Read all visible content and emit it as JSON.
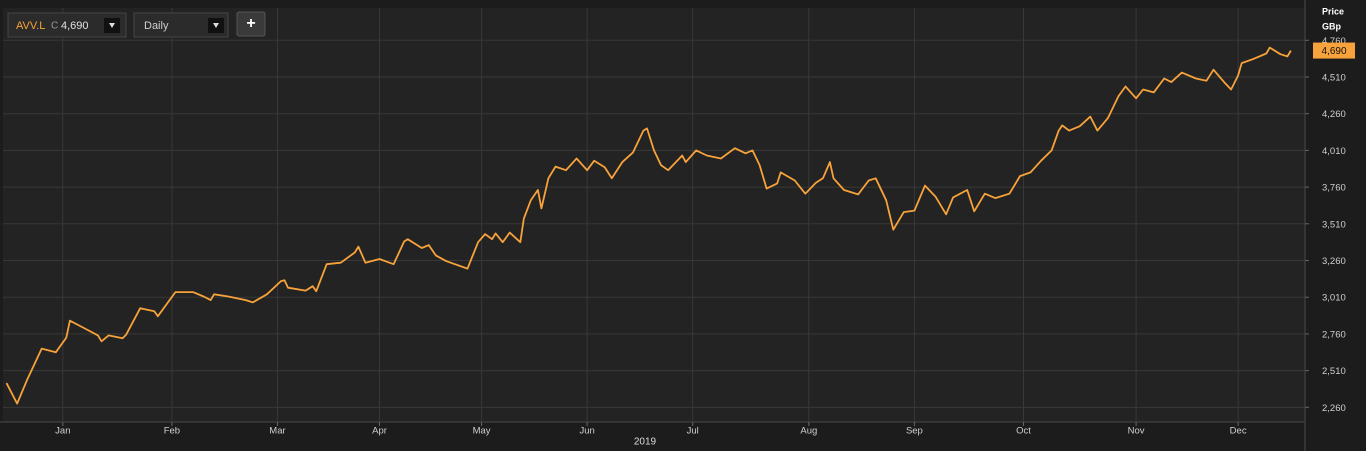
{
  "chart_data": {
    "type": "line",
    "interval": "Daily",
    "close_prefix": "C",
    "last_label": "4,690",
    "add_button": "+",
    "axis_title": [
      "Price",
      "GBp"
    ],
    "year_label": "2019",
    "grid": true,
    "x": [
      1,
      4,
      7,
      11,
      15,
      18,
      19,
      23,
      27,
      28,
      30,
      34,
      35,
      39,
      43,
      44,
      49,
      54,
      57,
      59,
      60,
      64,
      69,
      71,
      75,
      79,
      80,
      81,
      86,
      88,
      89,
      92,
      96,
      100,
      101,
      103,
      107,
      111,
      114,
      115,
      119,
      121,
      123,
      126,
      132,
      135,
      137,
      139,
      140,
      142,
      144,
      147,
      148,
      150,
      152,
      153,
      155,
      157,
      160,
      163,
      166,
      168,
      171,
      173,
      176,
      179,
      182,
      183,
      185,
      187,
      189,
      193,
      194,
      197,
      200,
      204,
      208,
      211,
      213,
      215,
      217,
      220,
      221,
      225,
      228,
      231,
      233,
      235,
      236,
      239,
      243,
      246,
      248,
      251,
      253,
      256,
      259,
      262,
      265,
      268,
      270,
      274,
      276,
      279,
      282,
      286,
      289,
      292,
      295,
      298,
      300,
      301,
      303,
      306,
      309,
      311,
      314,
      317,
      319,
      322,
      324,
      327,
      330,
      332,
      335,
      339,
      342,
      344,
      347,
      349,
      351,
      352,
      355,
      359,
      360,
      363,
      365,
      366
    ],
    "series": [
      {
        "name": "AVV.L",
        "color": "#f7a23a",
        "values": [
          2425,
          2285,
          2455,
          2660,
          2635,
          2735,
          2850,
          2800,
          2750,
          2710,
          2750,
          2730,
          2755,
          2935,
          2915,
          2880,
          3045,
          3045,
          3015,
          2990,
          3030,
          3015,
          2990,
          2975,
          3030,
          3120,
          3125,
          3075,
          3055,
          3085,
          3050,
          3235,
          3245,
          3315,
          3355,
          3245,
          3270,
          3235,
          3390,
          3405,
          3345,
          3365,
          3295,
          3255,
          3205,
          3385,
          3440,
          3405,
          3445,
          3385,
          3450,
          3385,
          3545,
          3670,
          3740,
          3615,
          3820,
          3900,
          3875,
          3955,
          3875,
          3940,
          3895,
          3820,
          3930,
          3995,
          4145,
          4160,
          4010,
          3910,
          3875,
          3975,
          3930,
          4010,
          3975,
          3955,
          4025,
          3990,
          4010,
          3910,
          3750,
          3785,
          3860,
          3805,
          3715,
          3790,
          3820,
          3930,
          3820,
          3740,
          3710,
          3805,
          3820,
          3670,
          3470,
          3590,
          3600,
          3770,
          3695,
          3575,
          3690,
          3740,
          3595,
          3715,
          3685,
          3715,
          3835,
          3860,
          3940,
          4010,
          4145,
          4180,
          4145,
          4175,
          4240,
          4145,
          4230,
          4380,
          4445,
          4365,
          4425,
          4405,
          4500,
          4475,
          4540,
          4500,
          4485,
          4560,
          4475,
          4425,
          4520,
          4605,
          4630,
          4670,
          4710,
          4665,
          4650,
          4690
        ]
      }
    ],
    "xlim": [
      0,
      370
    ],
    "xticks": [
      {
        "value": 17,
        "label": "Jan"
      },
      {
        "value": 48,
        "label": "Feb"
      },
      {
        "value": 78,
        "label": "Mar"
      },
      {
        "value": 107,
        "label": "Apr"
      },
      {
        "value": 136,
        "label": "May"
      },
      {
        "value": 166,
        "label": "Jun"
      },
      {
        "value": 196,
        "label": "Jul"
      },
      {
        "value": 229,
        "label": "Aug"
      },
      {
        "value": 259,
        "label": "Sep"
      },
      {
        "value": 290,
        "label": "Oct"
      },
      {
        "value": 322,
        "label": "Nov"
      },
      {
        "value": 351,
        "label": "Dec"
      }
    ],
    "ylim": [
      2160,
      4980
    ],
    "yticks": [
      {
        "value": 2260,
        "label": "2,260"
      },
      {
        "value": 2510,
        "label": "2,510"
      },
      {
        "value": 2760,
        "label": "2,760"
      },
      {
        "value": 3010,
        "label": "3,010"
      },
      {
        "value": 3260,
        "label": "3,260"
      },
      {
        "value": 3510,
        "label": "3,510"
      },
      {
        "value": 3760,
        "label": "3,760"
      },
      {
        "value": 4010,
        "label": "4,010"
      },
      {
        "value": 4260,
        "label": "4,260"
      },
      {
        "value": 4510,
        "label": "4,510"
      },
      {
        "value": 4760,
        "label": "4,760"
      }
    ]
  }
}
